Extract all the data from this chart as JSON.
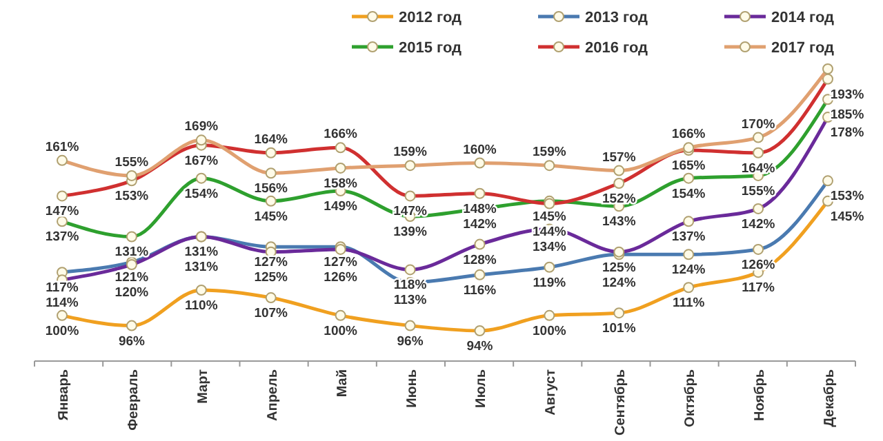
{
  "chart_data": {
    "type": "line",
    "categories": [
      "Январь",
      "Февраль",
      "Март",
      "Апрель",
      "Май",
      "Июнь",
      "Июль",
      "Август",
      "Сентябрь",
      "Октябрь",
      "Ноябрь",
      "Декабрь"
    ],
    "marker": "circle",
    "legend": "top",
    "series": [
      {
        "name": "2012 год",
        "color": "#f0a020",
        "values": [
          100,
          96,
          110,
          107,
          100,
          96,
          94,
          100,
          101,
          111,
          117,
          145
        ],
        "value_labels": [
          "100%",
          "96%",
          "110%",
          "107%",
          "100%",
          "96%",
          "94%",
          "100%",
          "101%",
          "111%",
          "117%",
          "145%"
        ]
      },
      {
        "name": "2013 год",
        "color": "#4a7ab0",
        "values": [
          117,
          121,
          131,
          127,
          127,
          113,
          116,
          119,
          124,
          124,
          126,
          153
        ],
        "value_labels": [
          "117%",
          "121%",
          "131%",
          "127%",
          "127%",
          "113%",
          "116%",
          "119%",
          "124%",
          "124%",
          "126%",
          "153%"
        ]
      },
      {
        "name": "2014 год",
        "color": "#6a2a9a",
        "values": [
          114,
          120,
          131,
          125,
          126,
          118,
          128,
          134,
          125,
          137,
          142,
          178
        ],
        "value_labels": [
          "114%",
          "120%",
          "131%",
          "125%",
          "126%",
          "118%",
          "128%",
          "134%",
          "125%",
          "137%",
          "142%",
          "178%"
        ]
      },
      {
        "name": "2015 год",
        "color": "#2ea02e",
        "values": [
          137,
          131,
          154,
          145,
          149,
          139,
          142,
          145,
          143,
          154,
          155,
          185
        ],
        "value_labels": [
          "137%",
          "131%",
          "154%",
          "145%",
          "149%",
          "139%",
          "142%",
          "145%",
          "143%",
          "154%",
          "155%",
          "185%"
        ]
      },
      {
        "name": "2016 год",
        "color": "#d03030",
        "values": [
          147,
          153,
          167,
          164,
          166,
          147,
          148,
          144,
          152,
          165,
          164,
          193
        ],
        "value_labels": [
          "147%",
          "153%",
          "167%",
          "164%",
          "166%",
          "147%",
          "148%",
          "144%",
          "152%",
          "165%",
          "164%",
          "193%"
        ]
      },
      {
        "name": "2017 год",
        "color": "#e0a070",
        "values": [
          161,
          155,
          169,
          156,
          158,
          159,
          160,
          159,
          157,
          166,
          170,
          197
        ],
        "value_labels": [
          "161%",
          "155%",
          "169%",
          "156%",
          "158%",
          "159%",
          "160%",
          "159%",
          "157%",
          "166%",
          "170%",
          null
        ]
      }
    ]
  }
}
